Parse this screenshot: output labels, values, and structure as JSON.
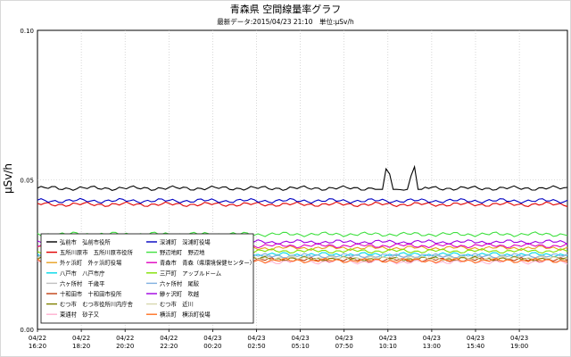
{
  "chart_data": {
    "type": "line",
    "title": "青森県 空間線量率グラフ",
    "subtitle": "最新データ:2015/04/23 21:10　単位:μSv/h",
    "ylabel": "μSv/h",
    "ylim": [
      0,
      0.1
    ],
    "y_ticks": [
      "0.00",
      "0.05",
      "0.10"
    ],
    "x_ticks": [
      {
        "date": "04/22",
        "time": "16:20"
      },
      {
        "date": "04/22",
        "time": "18:20"
      },
      {
        "date": "04/22",
        "time": "20:20"
      },
      {
        "date": "04/22",
        "time": "22:20"
      },
      {
        "date": "04/23",
        "time": "00:20"
      },
      {
        "date": "04/23",
        "time": "02:50"
      },
      {
        "date": "04/23",
        "time": "05:10"
      },
      {
        "date": "04/23",
        "time": "07:50"
      },
      {
        "date": "04/23",
        "time": "10:10"
      },
      {
        "date": "04/23",
        "time": "13:00"
      },
      {
        "date": "04/23",
        "time": "15:40"
      },
      {
        "date": "04/23",
        "time": "19:00"
      }
    ],
    "grid": true,
    "legend_position": "bottom-left",
    "series": [
      {
        "name": "弘前市　弘前市役所",
        "color": "#000000",
        "base": 0.0472,
        "spikes": [
          [
            0.66,
            0.0555
          ],
          [
            0.71,
            0.0555
          ]
        ]
      },
      {
        "name": "五所川原市　五所川原市役所",
        "color": "#e00000",
        "base": 0.0418
      },
      {
        "name": "外ヶ浜町　外ヶ浜町役場",
        "color": "#e8a020",
        "base": 0.0272
      },
      {
        "name": "八戸市　八戸市庁",
        "color": "#00d8e8",
        "base": 0.025
      },
      {
        "name": "六ヶ所村　千歳平",
        "color": "#c0c0c0",
        "base": 0.0242
      },
      {
        "name": "十和田市　十和田市役所",
        "color": "#c04010",
        "base": 0.0232
      },
      {
        "name": "むつ市　むつ市役所川内庁舎",
        "color": "#808000",
        "base": 0.0236
      },
      {
        "name": "東通村　砂子又",
        "color": "#ffb0d0",
        "base": 0.0226
      },
      {
        "name": "深浦町　深浦町役場",
        "color": "#0000c0",
        "base": 0.043
      },
      {
        "name": "野辺地町　野辺地",
        "color": "#40e040",
        "base": 0.0318
      },
      {
        "name": "青森市　青森（県環境保健センター）",
        "color": "#e000c0",
        "base": 0.028
      },
      {
        "name": "三戸町　アップルドーム",
        "color": "#80e000",
        "base": 0.0262
      },
      {
        "name": "六ヶ所村　尾駮",
        "color": "#80b0e0",
        "base": 0.0246
      },
      {
        "name": "鰺ヶ沢町　吹越",
        "color": "#a000e0",
        "base": 0.0292
      },
      {
        "name": "むつ市　近川",
        "color": "#d8d8b0",
        "base": 0.0238
      },
      {
        "name": "横浜町　横浜町役場",
        "color": "#ff7020",
        "base": 0.023
      }
    ]
  }
}
